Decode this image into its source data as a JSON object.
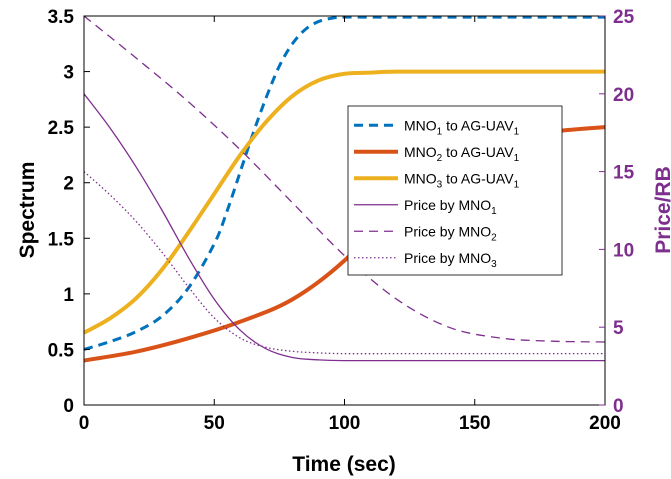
{
  "chart_data": {
    "type": "line",
    "xlabel": "Time (sec)",
    "ylabel_left": "Spectrum",
    "ylabel_right": "Price/RB",
    "xlim": [
      0,
      200
    ],
    "ylim_left": [
      0,
      3.5
    ],
    "ylim_right": [
      0,
      25
    ],
    "xticks": [
      "0",
      "50",
      "100",
      "150",
      "200"
    ],
    "yticks_left": [
      "0",
      "0.5",
      "1",
      "1.5",
      "2",
      "2.5",
      "3",
      "3.5"
    ],
    "yticks_right": [
      "0",
      "5",
      "10",
      "15",
      "20",
      "25"
    ],
    "colors": {
      "blue": "#0072BD",
      "orange": "#D95319",
      "yellow": "#EDB120",
      "purple": "#7E2F8E"
    },
    "series": [
      {
        "name": "MNO1 to AG-UAV1",
        "legend": {
          "a": "MNO",
          "a_sub": "1",
          "b": " to AG-UAV",
          "b_sub": "1"
        },
        "axis": "left",
        "style": "dashed",
        "color": "#0072BD",
        "width": 3,
        "x": [
          0,
          10,
          20,
          30,
          40,
          50,
          55,
          60,
          65,
          70,
          75,
          80,
          85,
          90,
          95,
          100,
          110,
          120,
          150,
          200
        ],
        "y": [
          0.5,
          0.57,
          0.66,
          0.8,
          1.05,
          1.45,
          1.75,
          2.1,
          2.45,
          2.77,
          3.05,
          3.25,
          3.38,
          3.45,
          3.48,
          3.49,
          3.49,
          3.49,
          3.49,
          3.49
        ]
      },
      {
        "name": "MNO2 to AG-UAV1",
        "legend": {
          "a": "MNO",
          "a_sub": "2",
          "b": " to AG-UAV",
          "b_sub": "1"
        },
        "axis": "left",
        "style": "solid",
        "color": "#D95319",
        "width": 4,
        "x": [
          0,
          20,
          40,
          60,
          80,
          100,
          120,
          140,
          160,
          180,
          200
        ],
        "y": [
          0.4,
          0.48,
          0.6,
          0.75,
          0.95,
          1.3,
          1.8,
          2.2,
          2.38,
          2.46,
          2.5
        ]
      },
      {
        "name": "MNO3 to AG-UAV1",
        "legend": {
          "a": "MNO",
          "a_sub": "3",
          "b": " to AG-UAV",
          "b_sub": "1"
        },
        "axis": "left",
        "style": "solid",
        "color": "#EDB120",
        "width": 4,
        "x": [
          0,
          10,
          20,
          30,
          40,
          50,
          60,
          70,
          80,
          90,
          100,
          110,
          120,
          150,
          200
        ],
        "y": [
          0.65,
          0.78,
          0.96,
          1.22,
          1.55,
          1.9,
          2.25,
          2.55,
          2.78,
          2.92,
          2.98,
          2.99,
          3.0,
          3.0,
          3.0
        ]
      },
      {
        "name": "Price by MNO1",
        "legend": {
          "a": "Price by MNO",
          "a_sub": "1",
          "b": "",
          "b_sub": ""
        },
        "axis": "right",
        "style": "solid",
        "color": "#7E2F8E",
        "width": 1.3,
        "x": [
          0,
          10,
          20,
          30,
          40,
          50,
          60,
          70,
          80,
          90,
          100,
          120,
          150,
          200
        ],
        "y": [
          20.0,
          17.8,
          15.3,
          12.5,
          9.5,
          6.8,
          4.8,
          3.6,
          3.05,
          2.9,
          2.85,
          2.85,
          2.85,
          2.85
        ]
      },
      {
        "name": "Price by MNO2",
        "legend": {
          "a": "Price by MNO",
          "a_sub": "2",
          "b": "",
          "b_sub": ""
        },
        "axis": "right",
        "style": "dashed",
        "color": "#7E2F8E",
        "width": 1.3,
        "x": [
          0,
          20,
          40,
          60,
          80,
          100,
          120,
          140,
          160,
          180,
          200
        ],
        "y": [
          25.0,
          22.3,
          19.5,
          16.4,
          13.0,
          9.6,
          6.8,
          5.0,
          4.3,
          4.1,
          4.05
        ]
      },
      {
        "name": "Price by MNO3",
        "legend": {
          "a": "Price by MNO",
          "a_sub": "3",
          "b": "",
          "b_sub": ""
        },
        "axis": "right",
        "style": "dotted",
        "color": "#7E2F8E",
        "width": 1.3,
        "x": [
          0,
          10,
          20,
          30,
          40,
          50,
          60,
          70,
          80,
          90,
          100,
          120,
          150,
          200
        ],
        "y": [
          15.0,
          13.5,
          11.8,
          9.8,
          7.6,
          5.6,
          4.3,
          3.7,
          3.45,
          3.35,
          3.3,
          3.3,
          3.3,
          3.3
        ]
      }
    ],
    "legend_position": "center-right",
    "grid": false
  }
}
